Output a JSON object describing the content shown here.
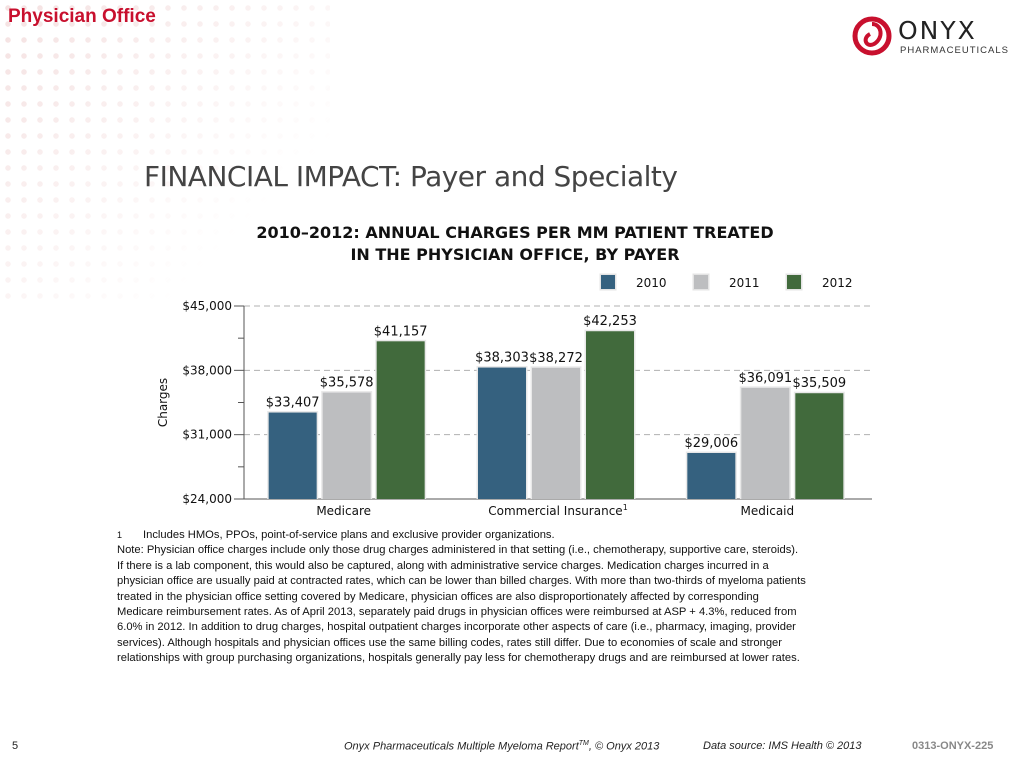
{
  "header": {
    "section": "Physician Office",
    "logo_name": "ONYX",
    "logo_sub": "PHARMACEUTICALS"
  },
  "page_title": "FINANCIAL IMPACT: Payer and Specialty",
  "chart_data": {
    "type": "bar",
    "title_line1": "2010–2012: ANNUAL CHARGES PER MM PATIENT TREATED",
    "title_line2": "IN THE PHYSICIAN OFFICE, BY PAYER",
    "ylabel": "Charges",
    "xlabel": "",
    "ylim": [
      24000,
      45000
    ],
    "yticks": [
      24000,
      31000,
      38000,
      45000
    ],
    "ytick_labels": [
      "$24,000",
      "$31,000",
      "$38,000",
      "$45,000"
    ],
    "categories": [
      "Medicare",
      "Commercial Insurance",
      "Medicaid"
    ],
    "category_superscripts": [
      "",
      "1",
      ""
    ],
    "series": [
      {
        "name": "2010",
        "color": "#35617f",
        "values": [
          33407,
          38303,
          29006
        ],
        "labels": [
          "$33,407",
          "$38,303",
          "$29,006"
        ]
      },
      {
        "name": "2011",
        "color": "#bdbec0",
        "values": [
          35578,
          38272,
          36091
        ],
        "labels": [
          "$35,578",
          "$38,272",
          "$36,091"
        ]
      },
      {
        "name": "2012",
        "color": "#416a3c",
        "values": [
          41157,
          42253,
          35509
        ],
        "labels": [
          "$41,157",
          "$42,253",
          "$35,509"
        ]
      }
    ],
    "legend_position": "top-right",
    "grid": true
  },
  "notes": {
    "footnote_marker": "1",
    "footnote_text": "Includes HMOs, PPOs, point-of-service plans and exclusive provider organizations.",
    "lines": [
      "Note: Physician office charges include only those drug charges administered in that setting (i.e., chemotherapy, supportive care, steroids).",
      "If there is a lab component, this would also be captured, along with administrative service charges. Medication charges incurred in a",
      "physician office are usually paid at contracted rates, which can be lower than billed charges. With more than two-thirds of myeloma patients",
      "treated in the physician office setting covered by Medicare, physician offices are also disproportionately affected by corresponding",
      "Medicare reimbursement rates. As of April 2013, separately paid drugs in physician offices were reimbursed at ASP + 4.3%, reduced from",
      "6.0% in 2012. In addition to drug charges, hospital outpatient charges incorporate other aspects of care (i.e., pharmacy, imaging, provider",
      "services). Although hospitals and physician offices use the same billing codes, rates still differ. Due to economies of scale and stronger",
      "relationships with group purchasing organizations, hospitals generally pay less for chemotherapy drugs and are reimbursed at lower rates."
    ]
  },
  "footer": {
    "page_number": "5",
    "report": "Onyx Pharmaceuticals Multiple Myeloma Report",
    "report_tm": "TM",
    "report_copy": ", © Onyx 2013",
    "source": "Data source:  IMS Health © 2013",
    "code": "0313-ONYX-225"
  }
}
